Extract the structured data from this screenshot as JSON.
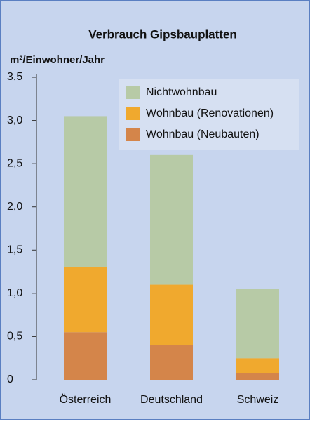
{
  "chart_data": {
    "type": "stacked_bar",
    "title": "Verbrauch Gipsbauplatten",
    "y_label": "m²/Einwohner/Jahr",
    "categories": [
      "Österreich",
      "Deutschland",
      "Schweiz"
    ],
    "series": [
      {
        "name": "Wohnbau (Neubauten)",
        "color": "#d4854a",
        "values": [
          0.55,
          0.4,
          0.08
        ]
      },
      {
        "name": "Wohnbau (Renovationen)",
        "color": "#f0a92e",
        "values": [
          0.75,
          0.7,
          0.17
        ]
      },
      {
        "name": "Nichtwohnbau",
        "color": "#b7caa6",
        "values": [
          1.75,
          1.5,
          0.8
        ]
      }
    ],
    "ylim": [
      0,
      3.5
    ],
    "yticks": [
      0,
      {
        "value": 0.5,
        "label": "0,5"
      },
      {
        "value": 1,
        "label": "1,0"
      },
      {
        "value": 1.5,
        "label": "1,5"
      },
      {
        "value": 2,
        "label": "2,0"
      },
      {
        "value": 2.5,
        "label": "2,5"
      },
      {
        "value": 3,
        "label": "3,0"
      },
      {
        "value": 3.5,
        "label": "3,5"
      }
    ],
    "legend": "top-right"
  }
}
